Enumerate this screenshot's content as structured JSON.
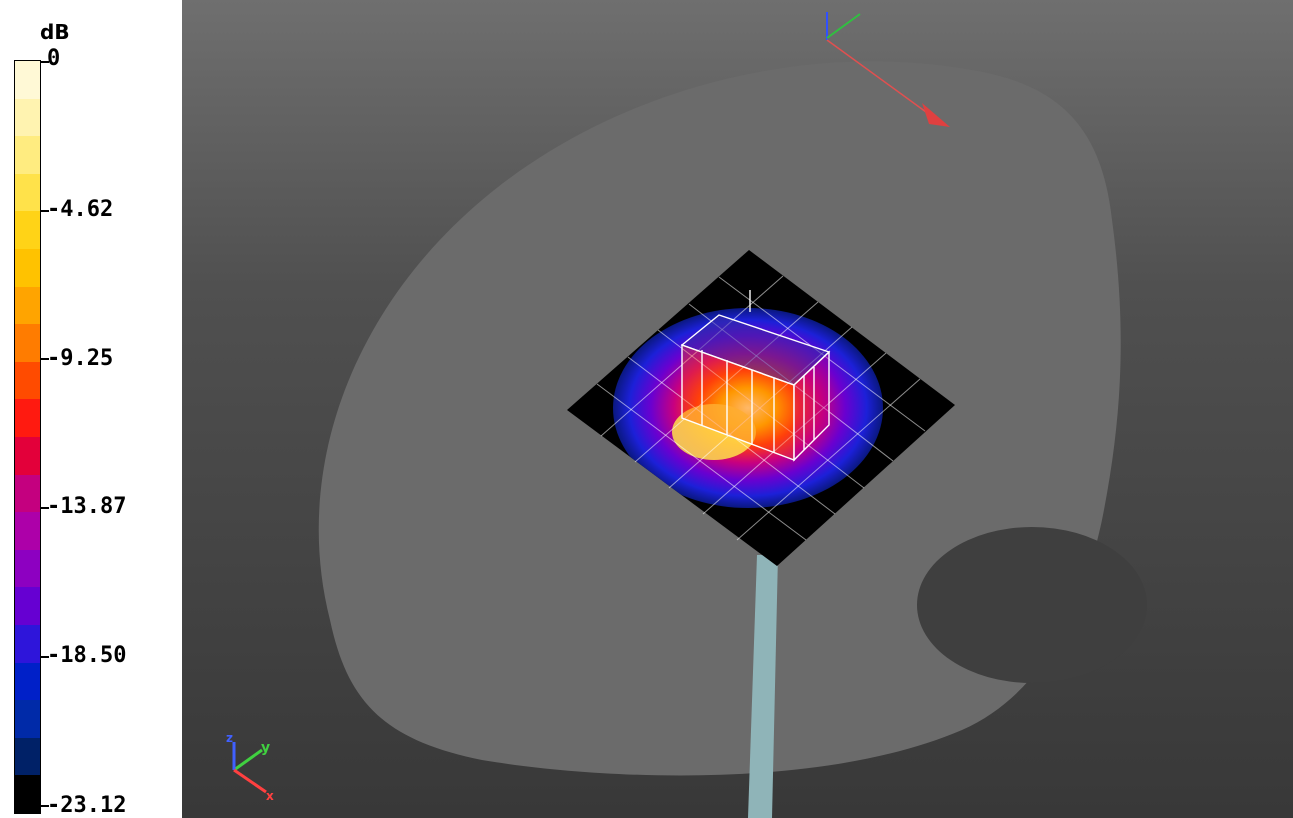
{
  "legend": {
    "unit": "dB",
    "ticks": [
      "0",
      "-4.62",
      "-9.25",
      "-13.87",
      "-18.50",
      "-23.12"
    ],
    "colors": [
      "#fff9d6",
      "#fff3b0",
      "#ffec80",
      "#ffe24a",
      "#ffd317",
      "#ffc200",
      "#ffa400",
      "#ff7c00",
      "#ff4b00",
      "#ff1a10",
      "#e3003a",
      "#c4007f",
      "#ad00a9",
      "#8d00c1",
      "#6600d2",
      "#2e15da",
      "#0020c8",
      "#002aa8",
      "#002167",
      "#000000"
    ]
  },
  "viewport": {
    "background_top": "#6f6f6f",
    "background_bottom": "#383838",
    "body_color": "#6b6b6b",
    "notch_color": "#3f3f3f",
    "rod_color": "#8fb4b8",
    "grid_color": "#ffffff"
  },
  "axes": {
    "triad_icon": "xyz-axis-triad",
    "labels": [
      "y",
      "z",
      "x"
    ]
  }
}
